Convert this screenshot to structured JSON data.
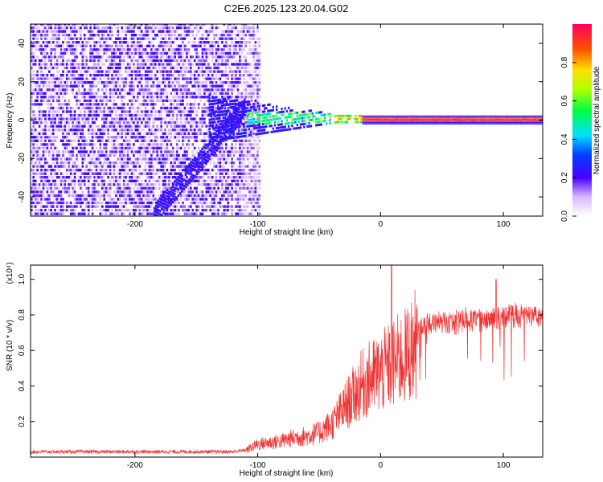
{
  "title": "C2E6.2025.123.20.04.G02",
  "chart_data": [
    {
      "type": "heatmap",
      "xlabel": "Height of straight line (km)",
      "ylabel": "Frequency (Hz)",
      "xlim": [
        -285,
        132
      ],
      "ylim": [
        -50,
        50
      ],
      "xticks": [
        "-200",
        "-100",
        "0",
        "100"
      ],
      "xtick_values": [
        -200,
        -100,
        0,
        100
      ],
      "yticks": [
        "-40",
        "-20",
        "0",
        "20",
        "40"
      ],
      "ytick_values": [
        -40,
        -20,
        0,
        20,
        40
      ],
      "colorbar": {
        "label": "Normalized spectral amplitude",
        "range": [
          0,
          1
        ],
        "ticks": [
          "0.0",
          "0.2",
          "0.4",
          "0.6",
          "0.8"
        ],
        "tick_values": [
          0.0,
          0.2,
          0.4,
          0.6,
          0.8
        ]
      }
    },
    {
      "type": "line",
      "xlabel": "Height of straight line (km)",
      "ylabel": "SNR (10 * v/v)",
      "multiplier": "(x10⁴)",
      "xlim": [
        -285,
        132
      ],
      "ylim": [
        0,
        1.08
      ],
      "xticks": [
        "-200",
        "-100",
        "0",
        "100"
      ],
      "xtick_values": [
        -200,
        -100,
        0,
        100
      ],
      "yticks": [
        "0.2",
        "0.4",
        "0.6",
        "0.8",
        "1.0"
      ],
      "ytick_values": [
        0.2,
        0.4,
        0.6,
        0.8,
        1.0
      ],
      "color": "#ee3333",
      "series": [
        {
          "x": [
            -285,
            -260,
            -240,
            -220,
            -200,
            -180,
            -160,
            -140,
            -120,
            -110,
            -100,
            -90,
            -80,
            -70,
            -60,
            -50,
            -45,
            -40,
            -35,
            -30,
            -25,
            -20,
            -15,
            -10,
            -5,
            0,
            5,
            10,
            15,
            20,
            25,
            30,
            35,
            40,
            50,
            60,
            70,
            80,
            90,
            100,
            110,
            120,
            125,
            132
          ],
          "values": [
            0.03,
            0.03,
            0.03,
            0.03,
            0.03,
            0.03,
            0.03,
            0.03,
            0.03,
            0.04,
            0.08,
            0.09,
            0.1,
            0.12,
            0.13,
            0.15,
            0.18,
            0.2,
            0.25,
            0.3,
            0.35,
            0.4,
            0.45,
            0.48,
            0.5,
            0.52,
            0.55,
            0.57,
            0.6,
            0.62,
            0.66,
            0.72,
            0.78,
            0.8,
            0.8,
            0.8,
            0.82,
            0.82,
            0.83,
            0.83,
            0.84,
            0.83,
            0.85,
            0.83
          ]
        }
      ]
    }
  ]
}
